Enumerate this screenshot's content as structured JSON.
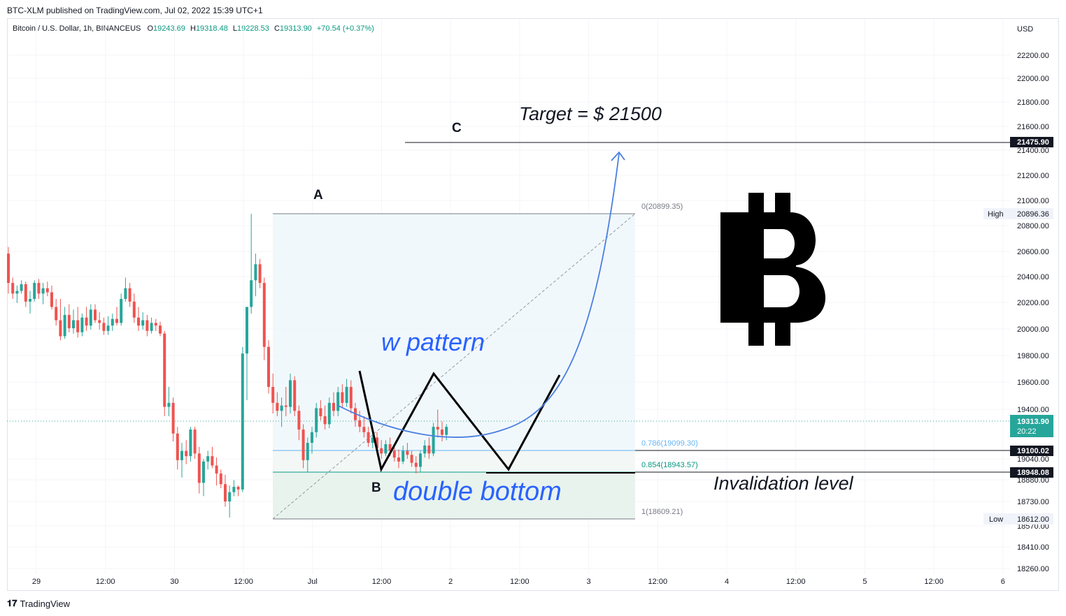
{
  "header": {
    "published": "BTC-XLM published on TradingView.com, Jul 02, 2022 15:39 UTC+1"
  },
  "legend": {
    "symbol": "Bitcoin / U.S. Dollar, 1h, BINANCEUS",
    "open_label": "O",
    "open": "19243.69",
    "high_label": "H",
    "high": "19318.48",
    "low_label": "L",
    "low": "19228.53",
    "close_label": "C",
    "close": "19313.90",
    "change": "+70.54 (+0.37%)"
  },
  "footer": {
    "brand": "TradingView",
    "logo_icon": "tradingview-logo-icon"
  },
  "colors": {
    "up": "#26a69a",
    "down": "#ef5350",
    "annotation_blue": "#2962ff",
    "curve_blue": "#4a7fe0"
  },
  "chart_data": {
    "type": "candlestick",
    "currency": "USD",
    "y_ticks": [
      "22200.00",
      "22000.00",
      "21800.00",
      "21600.00",
      "21400.00",
      "21200.00",
      "21000.00",
      "20800.00",
      "20600.00",
      "20400.00",
      "20200.00",
      "20000.00",
      "19800.00",
      "19600.00",
      "19400.00",
      "19040.00",
      "18880.00",
      "18730.00",
      "18570.00",
      "18410.00",
      "18260.00"
    ],
    "x_ticks": [
      "29",
      "12:00",
      "30",
      "12:00",
      "Jul",
      "12:00",
      "2",
      "12:00",
      "3",
      "12:00",
      "4",
      "12:00",
      "5",
      "12:00",
      "6"
    ],
    "price_tags": {
      "target_line": "21475.90",
      "high_label": "High",
      "high_value": "20896.36",
      "current": "19313.90",
      "countdown": "20:22",
      "fib_786_line": "19100.02",
      "fib_854_line": "18948.08",
      "low_label": "Low",
      "low_value": "18612.00"
    },
    "fib_levels": [
      {
        "label": "0(20899.35)",
        "value": 20899.35
      },
      {
        "label": "0.786(19099.30)",
        "value": 19099.3
      },
      {
        "label": "0.854(18943.57)",
        "value": 18943.57
      },
      {
        "label": "1(18609.21)",
        "value": 18609.21
      }
    ],
    "annotations": {
      "target": "Target = $ 21500",
      "point_a": "A",
      "point_b": "B",
      "point_c": "C",
      "w_pattern": "w pattern",
      "double_bottom": "double bottom",
      "invalidation": "Invalidation level"
    },
    "candles": [
      [
        20600,
        20650,
        20300,
        20380
      ],
      [
        20380,
        20420,
        20260,
        20300
      ],
      [
        20300,
        20360,
        20230,
        20320
      ],
      [
        20320,
        20400,
        20300,
        20370
      ],
      [
        20370,
        20390,
        20200,
        20240
      ],
      [
        20240,
        20320,
        20150,
        20260
      ],
      [
        20260,
        20400,
        20240,
        20380
      ],
      [
        20380,
        20410,
        20260,
        20300
      ],
      [
        20300,
        20380,
        20220,
        20340
      ],
      [
        20340,
        20390,
        20280,
        20310
      ],
      [
        20310,
        20360,
        20180,
        20200
      ],
      [
        20200,
        20260,
        20060,
        20100
      ],
      [
        20100,
        20260,
        19950,
        19980
      ],
      [
        19980,
        20200,
        19960,
        20140
      ],
      [
        20140,
        20220,
        20010,
        20040
      ],
      [
        20040,
        20180,
        20000,
        20100
      ],
      [
        20100,
        20200,
        19970,
        20010
      ],
      [
        20010,
        20150,
        19980,
        20120
      ],
      [
        20120,
        20200,
        20020,
        20060
      ],
      [
        20060,
        20220,
        20030,
        20180
      ],
      [
        20180,
        20220,
        20080,
        20100
      ],
      [
        20100,
        20160,
        20030,
        20080
      ],
      [
        20080,
        20120,
        19990,
        20020
      ],
      [
        20020,
        20130,
        19990,
        20060
      ],
      [
        20060,
        20150,
        20020,
        20110
      ],
      [
        20110,
        20200,
        20060,
        20080
      ],
      [
        20080,
        20300,
        20060,
        20260
      ],
      [
        20260,
        20420,
        20240,
        20340
      ],
      [
        20340,
        20380,
        20200,
        20240
      ],
      [
        20240,
        20300,
        20080,
        20120
      ],
      [
        20120,
        20200,
        20020,
        20060
      ],
      [
        20060,
        20160,
        20030,
        20100
      ],
      [
        20100,
        20140,
        19980,
        20020
      ],
      [
        20020,
        20120,
        20000,
        20080
      ],
      [
        20080,
        20110,
        20020,
        20060
      ],
      [
        20060,
        20090,
        19980,
        20000
      ],
      [
        20000,
        20020,
        19380,
        19450
      ],
      [
        19450,
        19600,
        19380,
        19480
      ],
      [
        19480,
        19520,
        19190,
        19250
      ],
      [
        19250,
        19300,
        18980,
        19050
      ],
      [
        19050,
        19180,
        18920,
        19120
      ],
      [
        19120,
        19200,
        19020,
        19080
      ],
      [
        19080,
        19300,
        19040,
        19280
      ],
      [
        19280,
        19300,
        19060,
        19100
      ],
      [
        19100,
        19150,
        18800,
        18880
      ],
      [
        18880,
        19060,
        18780,
        19040
      ],
      [
        19040,
        19120,
        18980,
        19080
      ],
      [
        19080,
        19150,
        18990,
        19010
      ],
      [
        19010,
        19070,
        18860,
        18950
      ],
      [
        18950,
        18980,
        18840,
        18870
      ],
      [
        18870,
        18940,
        18700,
        18740
      ],
      [
        18740,
        18860,
        18620,
        18810
      ],
      [
        18810,
        18900,
        18780,
        18850
      ],
      [
        18850,
        18860,
        18780,
        18830
      ],
      [
        18830,
        19900,
        18810,
        19850
      ],
      [
        19850,
        20200,
        19500,
        20200
      ],
      [
        20200,
        20899,
        20150,
        20400
      ],
      [
        20400,
        20600,
        20280,
        20520
      ],
      [
        20520,
        20560,
        20340,
        20380
      ],
      [
        20380,
        20420,
        19800,
        19900
      ],
      [
        19900,
        19950,
        19550,
        19600
      ],
      [
        19600,
        19700,
        19400,
        19480
      ],
      [
        19480,
        19560,
        19380,
        19420
      ],
      [
        19420,
        19520,
        19300,
        19460
      ],
      [
        19460,
        19600,
        19380,
        19450
      ],
      [
        19450,
        19700,
        19400,
        19650
      ],
      [
        19650,
        19680,
        19380,
        19420
      ],
      [
        19420,
        19460,
        19200,
        19280
      ],
      [
        19280,
        19320,
        18990,
        19050
      ],
      [
        19050,
        19220,
        18960,
        19180
      ],
      [
        19180,
        19300,
        19100,
        19260
      ],
      [
        19260,
        19480,
        19220,
        19440
      ],
      [
        19440,
        19500,
        19350,
        19380
      ],
      [
        19380,
        19460,
        19280,
        19320
      ],
      [
        19320,
        19520,
        19290,
        19480
      ],
      [
        19480,
        19560,
        19380,
        19420
      ],
      [
        19420,
        19600,
        19380,
        19560
      ],
      [
        19560,
        19620,
        19440,
        19480
      ],
      [
        19480,
        19660,
        19450,
        19600
      ],
      [
        19600,
        19650,
        19400,
        19440
      ],
      [
        19440,
        19480,
        19300,
        19350
      ],
      [
        19350,
        19420,
        19260,
        19300
      ],
      [
        19300,
        19380,
        19220,
        19260
      ],
      [
        19260,
        19300,
        19150,
        19180
      ],
      [
        19180,
        19260,
        19140,
        19220
      ],
      [
        19220,
        19260,
        19110,
        19140
      ],
      [
        19140,
        19200,
        19060,
        19100
      ],
      [
        19100,
        19200,
        19080,
        19170
      ],
      [
        19170,
        19220,
        19080,
        19120
      ],
      [
        19120,
        19160,
        19040,
        19070
      ],
      [
        19070,
        19130,
        18990,
        19040
      ],
      [
        19040,
        19160,
        19020,
        19120
      ],
      [
        19120,
        19180,
        19060,
        19090
      ],
      [
        19090,
        19120,
        19000,
        19030
      ],
      [
        19030,
        19080,
        18950,
        19000
      ],
      [
        19000,
        19120,
        18960,
        19100
      ],
      [
        19100,
        19200,
        19070,
        19160
      ],
      [
        19160,
        19220,
        19060,
        19100
      ],
      [
        19100,
        19330,
        19080,
        19300
      ],
      [
        19300,
        19430,
        19220,
        19280
      ],
      [
        19280,
        19340,
        19190,
        19240
      ],
      [
        19240,
        19320,
        19200,
        19300
      ]
    ]
  }
}
